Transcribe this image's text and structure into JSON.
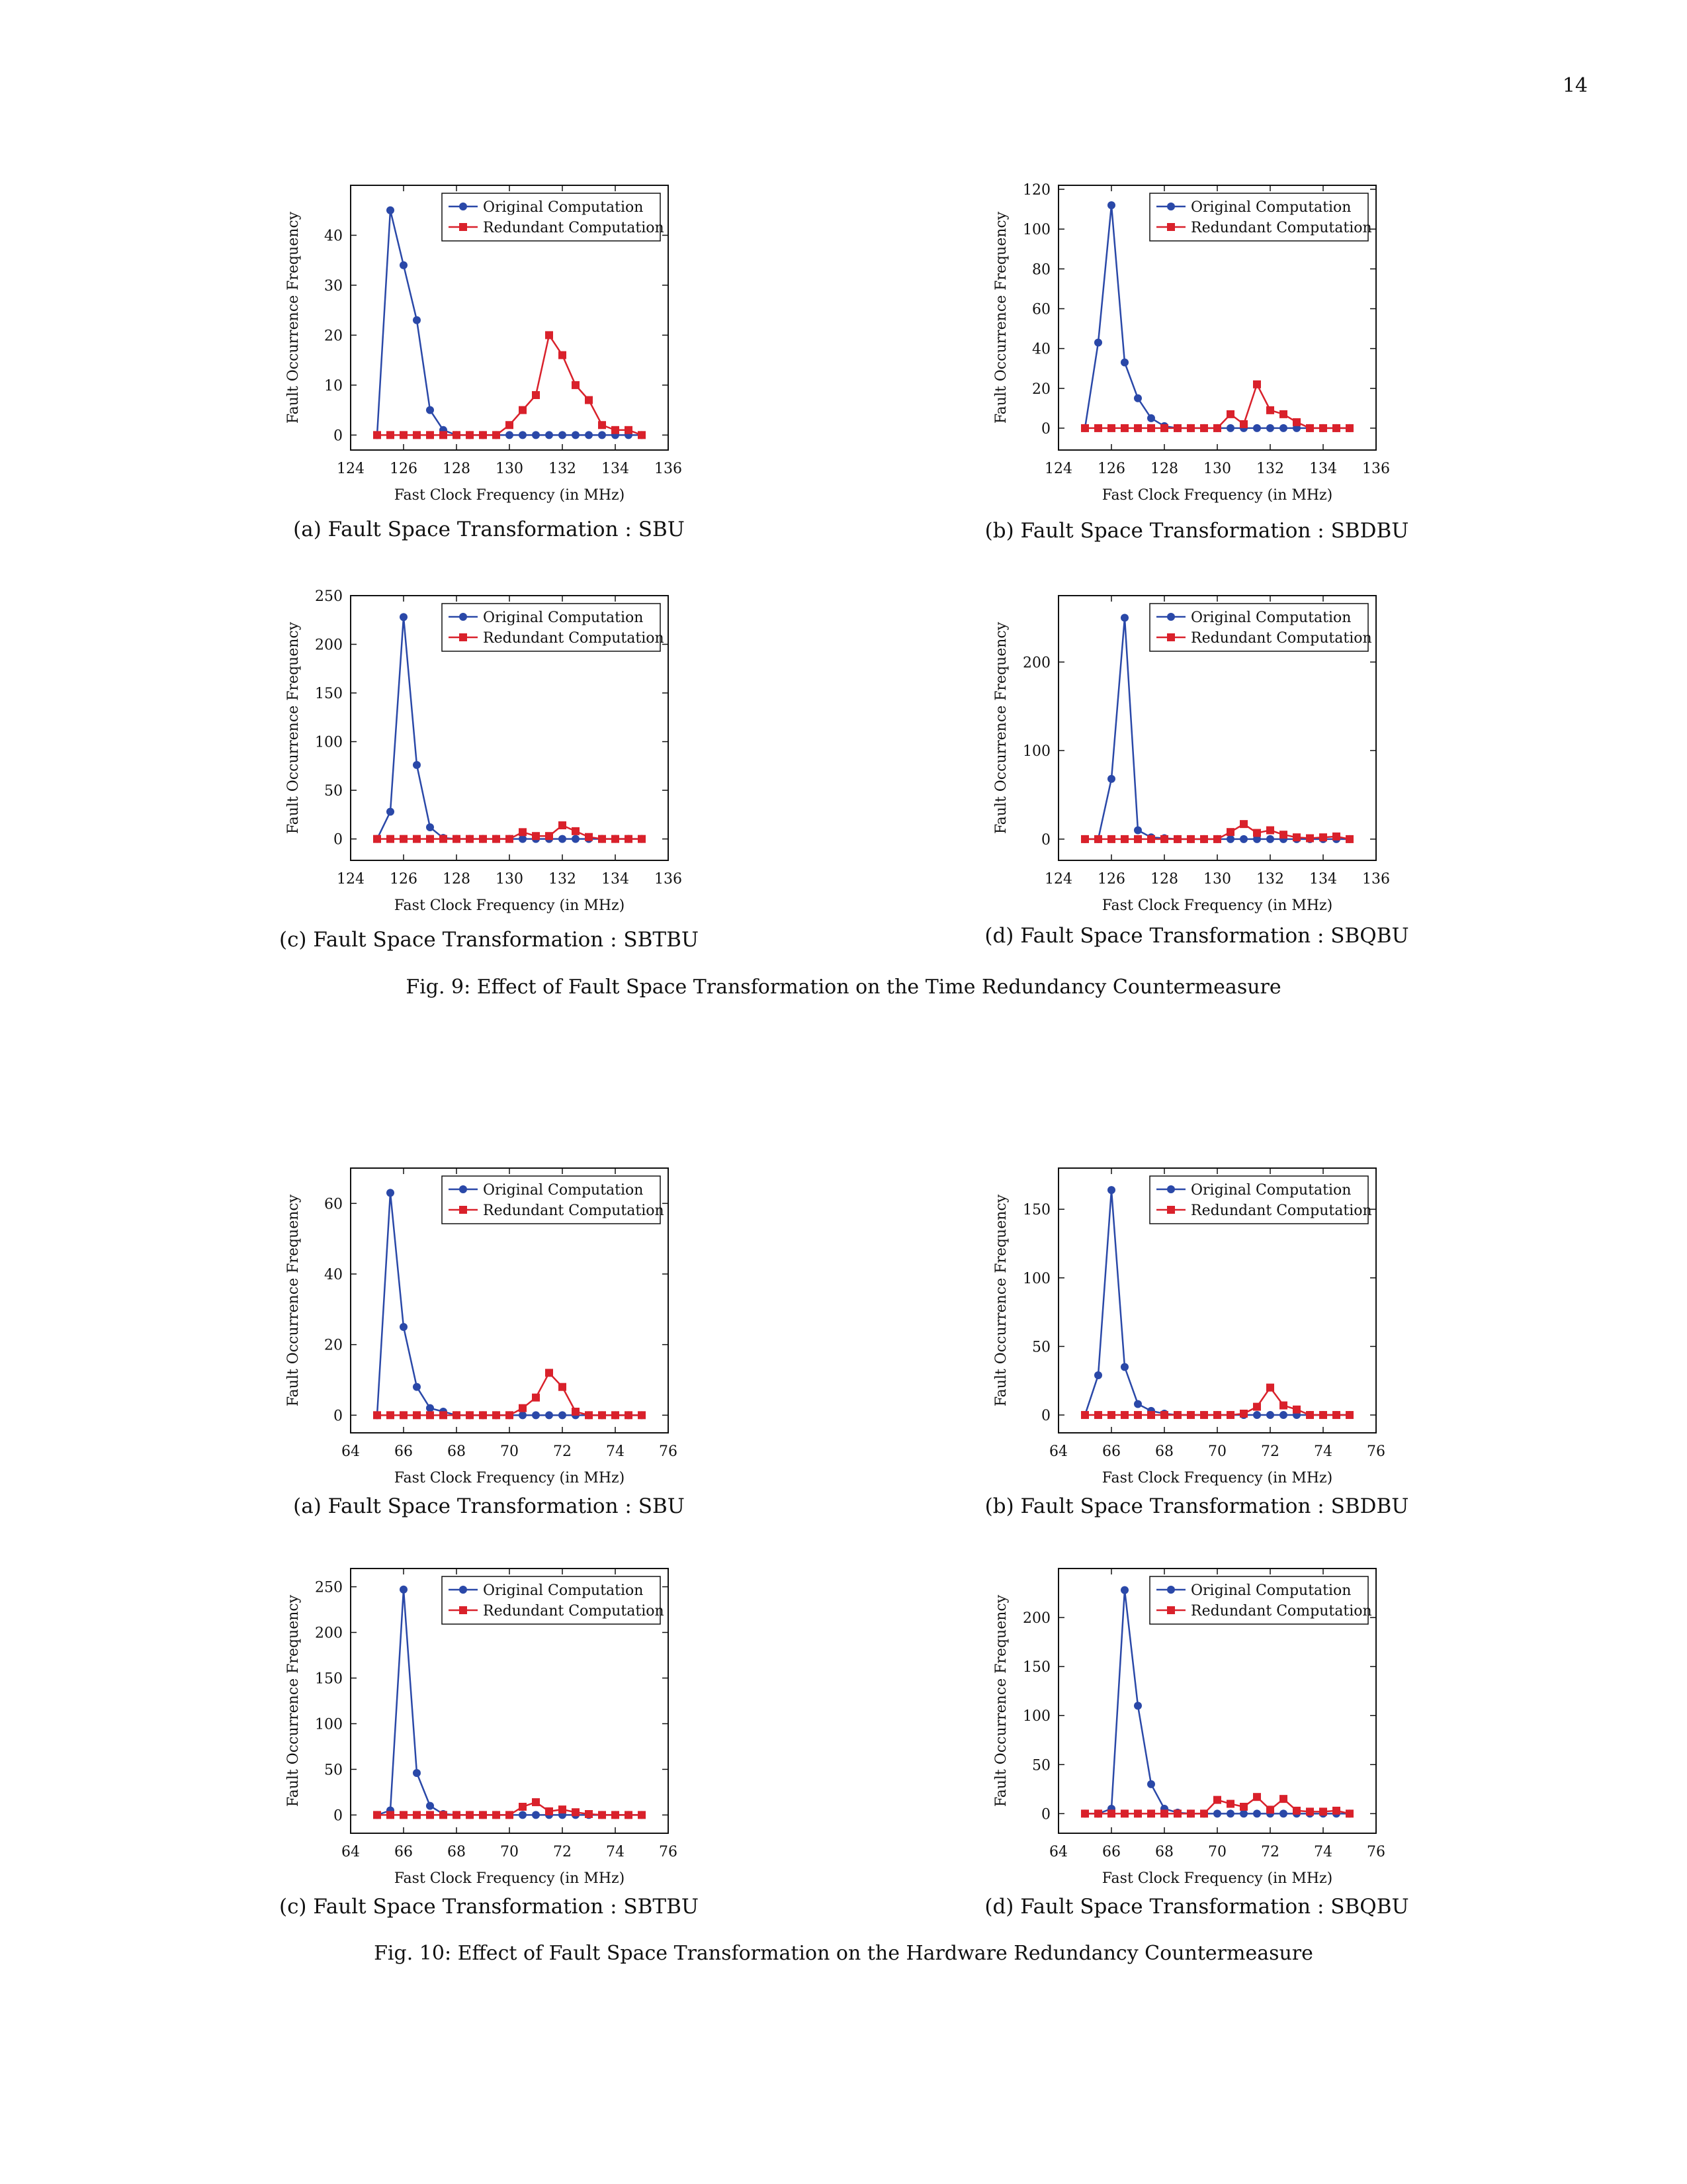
{
  "page_number": "14",
  "fig9_caption": "Fig. 9: Effect of Fault Space Transformation on the Time Redundancy Countermeasure",
  "fig10_caption": "Fig. 10: Effect of Fault Space Transformation on the Hardware Redundancy Countermeasure",
  "colors": {
    "original": "#2a48a8",
    "redundant": "#d9212b"
  },
  "chart_data": [
    {
      "type": "line",
      "caption": "(a) Fault Space Transformation : SBU",
      "xlabel": "Fast Clock Frequency (in MHz)",
      "ylabel": "Fault Occurrence Frequency",
      "xlim": [
        124,
        136
      ],
      "ylim": [
        -3,
        50
      ],
      "xticks": [
        124,
        126,
        128,
        130,
        132,
        134,
        136
      ],
      "yticks": [
        0,
        10,
        20,
        30,
        40
      ],
      "legend": "top-right",
      "grid": false,
      "x": [
        125,
        125.5,
        126,
        126.5,
        127,
        127.5,
        128,
        128.5,
        129,
        129.5,
        130,
        130.5,
        131,
        131.5,
        132,
        132.5,
        133,
        133.5,
        134,
        134.5,
        135
      ],
      "series": [
        {
          "name": "Original Computation",
          "values": [
            0,
            45,
            34,
            23,
            5,
            1,
            0,
            0,
            0,
            0,
            0,
            0,
            0,
            0,
            0,
            0,
            0,
            0,
            0,
            0,
            0
          ]
        },
        {
          "name": "Redundant Computation",
          "values": [
            0,
            0,
            0,
            0,
            0,
            0,
            0,
            0,
            0,
            0,
            2,
            5,
            8,
            20,
            16,
            10,
            7,
            2,
            1,
            1,
            0
          ]
        }
      ]
    },
    {
      "type": "line",
      "caption": "(b) Fault Space Transformation : SBDBU",
      "xlabel": "Fast Clock Frequency (in MHz)",
      "ylabel": "Fault Occurrence Frequency",
      "xlim": [
        124,
        136
      ],
      "ylim": [
        -11,
        122
      ],
      "xticks": [
        124,
        126,
        128,
        130,
        132,
        134,
        136
      ],
      "yticks": [
        0,
        20,
        40,
        60,
        80,
        100,
        120
      ],
      "legend": "top-right",
      "grid": false,
      "x": [
        125,
        125.5,
        126,
        126.5,
        127,
        127.5,
        128,
        128.5,
        129,
        129.5,
        130,
        130.5,
        131,
        131.5,
        132,
        132.5,
        133,
        133.5,
        134,
        134.5,
        135
      ],
      "series": [
        {
          "name": "Original Computation",
          "values": [
            0,
            43,
            112,
            33,
            15,
            5,
            1,
            0,
            0,
            0,
            0,
            0,
            0,
            0,
            0,
            0,
            0,
            0,
            0,
            0,
            0
          ]
        },
        {
          "name": "Redundant Computation",
          "values": [
            0,
            0,
            0,
            0,
            0,
            0,
            0,
            0,
            0,
            0,
            0,
            7,
            2,
            22,
            9,
            7,
            3,
            0,
            0,
            0,
            0
          ]
        }
      ]
    },
    {
      "type": "line",
      "caption": "(c) Fault Space Transformation : SBTBU",
      "xlabel": "Fast Clock Frequency (in MHz)",
      "ylabel": "Fault Occurrence Frequency",
      "xlim": [
        124,
        136
      ],
      "ylim": [
        -22,
        250
      ],
      "xticks": [
        124,
        126,
        128,
        130,
        132,
        134,
        136
      ],
      "yticks": [
        0,
        50,
        100,
        150,
        200,
        250
      ],
      "legend": "top-right",
      "grid": false,
      "x": [
        125,
        125.5,
        126,
        126.5,
        127,
        127.5,
        128,
        128.5,
        129,
        129.5,
        130,
        130.5,
        131,
        131.5,
        132,
        132.5,
        133,
        133.5,
        134,
        134.5,
        135
      ],
      "series": [
        {
          "name": "Original Computation",
          "values": [
            0,
            28,
            228,
            76,
            12,
            1,
            0,
            0,
            0,
            0,
            0,
            0,
            0,
            0,
            0,
            0,
            0,
            0,
            0,
            0,
            0
          ]
        },
        {
          "name": "Redundant Computation",
          "values": [
            0,
            0,
            0,
            0,
            0,
            0,
            0,
            0,
            0,
            0,
            0,
            7,
            3,
            3,
            14,
            8,
            2,
            0,
            0,
            0,
            0
          ]
        }
      ]
    },
    {
      "type": "line",
      "caption": "(d) Fault Space Transformation : SBQBU",
      "xlabel": "Fast Clock Frequency (in MHz)",
      "ylabel": "Fault Occurrence Frequency",
      "xlim": [
        124,
        136
      ],
      "ylim": [
        -24,
        275
      ],
      "xticks": [
        124,
        126,
        128,
        130,
        132,
        134,
        136
      ],
      "yticks": [
        0,
        100,
        200
      ],
      "legend": "top-right",
      "grid": false,
      "x": [
        125,
        125.5,
        126,
        126.5,
        127,
        127.5,
        128,
        128.5,
        129,
        129.5,
        130,
        130.5,
        131,
        131.5,
        132,
        132.5,
        133,
        133.5,
        134,
        134.5,
        135
      ],
      "series": [
        {
          "name": "Original Computation",
          "values": [
            0,
            0,
            68,
            250,
            10,
            2,
            1,
            0,
            0,
            0,
            0,
            0,
            0,
            0,
            0,
            0,
            0,
            0,
            0,
            0,
            0
          ]
        },
        {
          "name": "Redundant Computation",
          "values": [
            0,
            0,
            0,
            0,
            0,
            0,
            0,
            0,
            0,
            0,
            0,
            8,
            17,
            7,
            10,
            5,
            2,
            1,
            2,
            3,
            0
          ]
        }
      ]
    },
    {
      "type": "line",
      "caption": "(a) Fault Space Transformation : SBU",
      "xlabel": "Fast Clock Frequency (in MHz)",
      "ylabel": "Fault Occurrence Frequency",
      "xlim": [
        64,
        76
      ],
      "ylim": [
        -5,
        70
      ],
      "xticks": [
        64,
        66,
        68,
        70,
        72,
        74,
        76
      ],
      "yticks": [
        0,
        20,
        40,
        60
      ],
      "legend": "top-right",
      "grid": false,
      "x": [
        65,
        65.5,
        66,
        66.5,
        67,
        67.5,
        68,
        68.5,
        69,
        69.5,
        70,
        70.5,
        71,
        71.5,
        72,
        72.5,
        73,
        73.5,
        74,
        74.5,
        75
      ],
      "series": [
        {
          "name": "Original Computation",
          "values": [
            0,
            63,
            25,
            8,
            2,
            1,
            0,
            0,
            0,
            0,
            0,
            0,
            0,
            0,
            0,
            0,
            0,
            0,
            0,
            0,
            0
          ]
        },
        {
          "name": "Redundant Computation",
          "values": [
            0,
            0,
            0,
            0,
            0,
            0,
            0,
            0,
            0,
            0,
            0,
            2,
            5,
            12,
            8,
            1,
            0,
            0,
            0,
            0,
            0
          ]
        }
      ]
    },
    {
      "type": "line",
      "caption": "(b) Fault Space Transformation : SBDBU",
      "xlabel": "Fast Clock Frequency (in MHz)",
      "ylabel": "Fault Occurrence Frequency",
      "xlim": [
        64,
        76
      ],
      "ylim": [
        -13,
        180
      ],
      "xticks": [
        64,
        66,
        68,
        70,
        72,
        74,
        76
      ],
      "yticks": [
        0,
        50,
        100,
        150
      ],
      "legend": "top-right",
      "grid": false,
      "x": [
        65,
        65.5,
        66,
        66.5,
        67,
        67.5,
        68,
        68.5,
        69,
        69.5,
        70,
        70.5,
        71,
        71.5,
        72,
        72.5,
        73,
        73.5,
        74,
        74.5,
        75
      ],
      "series": [
        {
          "name": "Original Computation",
          "values": [
            0,
            29,
            164,
            35,
            8,
            3,
            1,
            0,
            0,
            0,
            0,
            0,
            0,
            0,
            0,
            0,
            0,
            0,
            0,
            0,
            0
          ]
        },
        {
          "name": "Redundant Computation",
          "values": [
            0,
            0,
            0,
            0,
            0,
            0,
            0,
            0,
            0,
            0,
            0,
            0,
            1,
            6,
            20,
            7,
            4,
            0,
            0,
            0,
            0
          ]
        }
      ]
    },
    {
      "type": "line",
      "caption": "(c) Fault Space Transformation : SBTBU",
      "xlabel": "Fast Clock Frequency (in MHz)",
      "ylabel": "Fault Occurrence Frequency",
      "xlim": [
        64,
        76
      ],
      "ylim": [
        -20,
        270
      ],
      "xticks": [
        64,
        66,
        68,
        70,
        72,
        74,
        76
      ],
      "yticks": [
        0,
        50,
        100,
        150,
        200,
        250
      ],
      "legend": "top-right",
      "grid": false,
      "x": [
        65,
        65.5,
        66,
        66.5,
        67,
        67.5,
        68,
        68.5,
        69,
        69.5,
        70,
        70.5,
        71,
        71.5,
        72,
        72.5,
        73,
        73.5,
        74,
        74.5,
        75
      ],
      "series": [
        {
          "name": "Original Computation",
          "values": [
            0,
            5,
            247,
            46,
            10,
            1,
            0,
            0,
            0,
            0,
            0,
            0,
            0,
            0,
            0,
            0,
            0,
            0,
            0,
            0,
            0
          ]
        },
        {
          "name": "Redundant Computation",
          "values": [
            0,
            0,
            0,
            0,
            0,
            0,
            0,
            0,
            0,
            0,
            0,
            9,
            14,
            4,
            6,
            3,
            1,
            0,
            0,
            0,
            0
          ]
        }
      ]
    },
    {
      "type": "line",
      "caption": "(d) Fault Space Transformation : SBQBU",
      "xlabel": "Fast Clock Frequency (in MHz)",
      "ylabel": "Fault Occurrence Frequency",
      "xlim": [
        64,
        76
      ],
      "ylim": [
        -20,
        250
      ],
      "xticks": [
        64,
        66,
        68,
        70,
        72,
        74,
        76
      ],
      "yticks": [
        0,
        50,
        100,
        150,
        200
      ],
      "legend": "top-right",
      "grid": false,
      "x": [
        65,
        65.5,
        66,
        66.5,
        67,
        67.5,
        68,
        68.5,
        69,
        69.5,
        70,
        70.5,
        71,
        71.5,
        72,
        72.5,
        73,
        73.5,
        74,
        74.5,
        75
      ],
      "series": [
        {
          "name": "Original Computation",
          "values": [
            0,
            0,
            5,
            228,
            110,
            30,
            5,
            1,
            0,
            0,
            0,
            0,
            0,
            0,
            0,
            0,
            0,
            0,
            0,
            0,
            0
          ]
        },
        {
          "name": "Redundant Computation",
          "values": [
            0,
            0,
            0,
            0,
            0,
            0,
            0,
            0,
            0,
            0,
            14,
            10,
            7,
            17,
            4,
            15,
            3,
            2,
            2,
            3,
            0
          ]
        }
      ]
    }
  ]
}
